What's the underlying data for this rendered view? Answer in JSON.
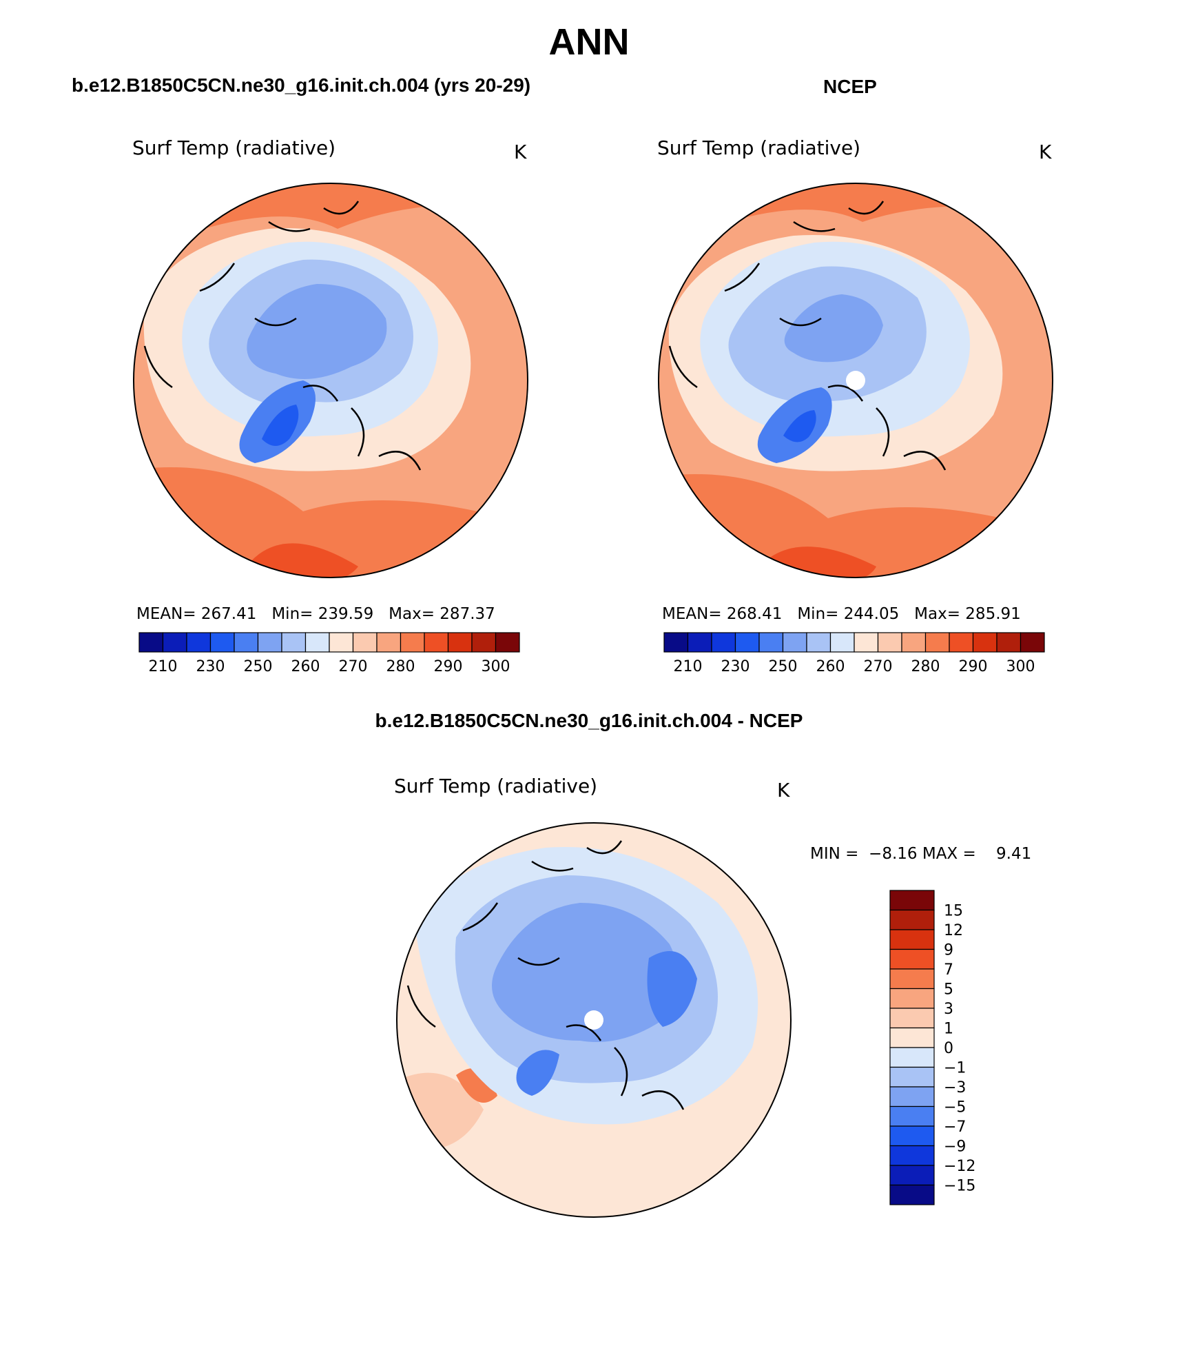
{
  "figure": {
    "title": "ANN"
  },
  "colors": {
    "abs_scale": [
      "#080b87",
      "#0b1db8",
      "#0f37dc",
      "#1e5af0",
      "#4a7ff2",
      "#7ea3f2",
      "#a9c3f5",
      "#d8e7fa",
      "#fde6d6",
      "#fbcab0",
      "#f8a57f",
      "#f57c4d",
      "#ee5025",
      "#d8320f",
      "#b01f0b",
      "#7a0608"
    ],
    "diff_scale": [
      "#080b87",
      "#0b1db8",
      "#0f37dc",
      "#1e5af0",
      "#4a7ff2",
      "#7ea3f2",
      "#a9c3f5",
      "#d8e7fa",
      "#fde6d6",
      "#fbcab0",
      "#f8a57f",
      "#f57c4d",
      "#ee5025",
      "#d8320f",
      "#b01f0b",
      "#7a0608"
    ]
  },
  "panels": {
    "model": {
      "header": "b.e12.B1850C5CN.ne30_g16.init.ch.004 (yrs 20-29)",
      "variable": "Surf Temp (radiative)",
      "units": "K",
      "mean_label": "MEAN=",
      "mean_value": "267.41",
      "min_label": "Min=",
      "min_value": "239.59",
      "max_label": "Max=",
      "max_value": "287.37",
      "colorbar_labels": [
        "210",
        "230",
        "250",
        "260",
        "270",
        "280",
        "290",
        "300"
      ]
    },
    "obs": {
      "header": "NCEP",
      "variable": "Surf Temp (radiative)",
      "units": "K",
      "mean_label": "MEAN=",
      "mean_value": "268.41",
      "min_label": "Min=",
      "min_value": "244.05",
      "max_label": "Max=",
      "max_value": "285.91",
      "colorbar_labels": [
        "210",
        "230",
        "250",
        "260",
        "270",
        "280",
        "290",
        "300"
      ]
    },
    "diff": {
      "header": "b.e12.B1850C5CN.ne30_g16.init.ch.004 - NCEP",
      "variable": "Surf Temp (radiative)",
      "units": "K",
      "min_label": "MIN =",
      "min_value": "−8.16",
      "max_label": "MAX =",
      "max_value": "9.41",
      "colorbar_labels": [
        "15",
        "12",
        "9",
        "7",
        "5",
        "3",
        "1",
        "0",
        "−1",
        "−3",
        "−5",
        "−7",
        "−9",
        "−12",
        "−15"
      ]
    }
  }
}
